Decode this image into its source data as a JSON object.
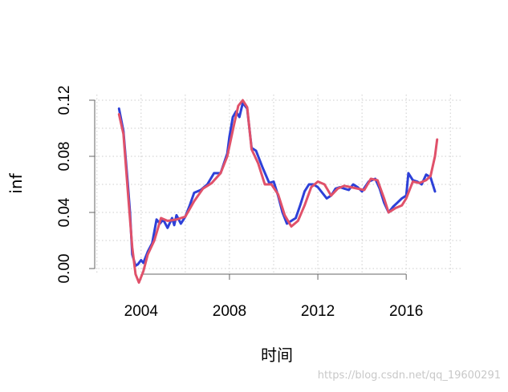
{
  "chart_data": {
    "type": "line",
    "title": "",
    "xlabel": "时间",
    "ylabel": "inf",
    "xlim": [
      2001.9,
      2018.5
    ],
    "ylim": [
      -0.004,
      0.124
    ],
    "x_ticks": [
      2004,
      2008,
      2012,
      2016
    ],
    "x_tick_labels": [
      "2004",
      "2008",
      "2012",
      "2016"
    ],
    "y_ticks": [
      0.0,
      0.04,
      0.08,
      0.12
    ],
    "y_tick_labels": [
      "0.00",
      "0.04",
      "0.08",
      "0.12"
    ],
    "grid": true,
    "series": [
      {
        "color": "#2d40d8",
        "x": [
          2003.0,
          2003.2,
          2003.4,
          2003.5,
          2003.6,
          2003.75,
          2003.85,
          2004.0,
          2004.1,
          2004.3,
          2004.5,
          2004.7,
          2004.85,
          2005.0,
          2005.2,
          2005.4,
          2005.5,
          2005.6,
          2005.8,
          2006.0,
          2006.2,
          2006.4,
          2006.7,
          2007.0,
          2007.3,
          2007.6,
          2007.9,
          2008.0,
          2008.15,
          2008.3,
          2008.45,
          2008.6,
          2008.8,
          2009.0,
          2009.2,
          2009.5,
          2009.8,
          2010.0,
          2010.2,
          2010.4,
          2010.6,
          2010.8,
          2011.0,
          2011.2,
          2011.4,
          2011.6,
          2011.8,
          2012.0,
          2012.2,
          2012.4,
          2012.6,
          2012.8,
          2013.0,
          2013.2,
          2013.4,
          2013.6,
          2013.8,
          2014.0,
          2014.3,
          2014.6,
          2014.8,
          2015.0,
          2015.2,
          2015.4,
          2015.6,
          2015.8,
          2016.0,
          2016.1,
          2016.3,
          2016.5,
          2016.7,
          2016.9,
          2017.1,
          2017.3
        ],
        "y": [
          0.114,
          0.098,
          0.06,
          0.04,
          0.01,
          0.002,
          0.003,
          0.006,
          0.004,
          0.012,
          0.018,
          0.035,
          0.032,
          0.035,
          0.029,
          0.036,
          0.031,
          0.038,
          0.032,
          0.037,
          0.045,
          0.054,
          0.056,
          0.06,
          0.068,
          0.068,
          0.082,
          0.094,
          0.108,
          0.112,
          0.108,
          0.118,
          0.114,
          0.086,
          0.084,
          0.072,
          0.061,
          0.062,
          0.052,
          0.04,
          0.032,
          0.034,
          0.036,
          0.045,
          0.055,
          0.06,
          0.06,
          0.058,
          0.054,
          0.05,
          0.052,
          0.057,
          0.058,
          0.057,
          0.056,
          0.06,
          0.058,
          0.055,
          0.062,
          0.064,
          0.057,
          0.047,
          0.04,
          0.044,
          0.047,
          0.05,
          0.052,
          0.068,
          0.063,
          0.062,
          0.06,
          0.067,
          0.065,
          0.055
        ]
      },
      {
        "color": "#e0516a",
        "x": [
          2003.0,
          2003.2,
          2003.4,
          2003.6,
          2003.75,
          2003.9,
          2004.1,
          2004.3,
          2004.6,
          2004.9,
          2005.2,
          2005.6,
          2006.0,
          2006.4,
          2006.8,
          2007.2,
          2007.6,
          2007.9,
          2008.2,
          2008.4,
          2008.6,
          2008.8,
          2009.0,
          2009.3,
          2009.6,
          2009.9,
          2010.2,
          2010.5,
          2010.8,
          2011.1,
          2011.4,
          2011.7,
          2012.0,
          2012.3,
          2012.6,
          2012.9,
          2013.2,
          2013.5,
          2013.8,
          2014.1,
          2014.4,
          2014.7,
          2015.0,
          2015.2,
          2015.5,
          2015.8,
          2016.0,
          2016.3,
          2016.6,
          2016.9,
          2017.1,
          2017.3,
          2017.4
        ],
        "y": [
          0.11,
          0.096,
          0.055,
          0.015,
          -0.004,
          -0.01,
          -0.002,
          0.01,
          0.02,
          0.036,
          0.034,
          0.035,
          0.037,
          0.048,
          0.057,
          0.061,
          0.068,
          0.08,
          0.102,
          0.116,
          0.12,
          0.115,
          0.085,
          0.075,
          0.06,
          0.06,
          0.053,
          0.038,
          0.03,
          0.034,
          0.045,
          0.058,
          0.062,
          0.06,
          0.052,
          0.057,
          0.059,
          0.058,
          0.057,
          0.056,
          0.064,
          0.063,
          0.05,
          0.04,
          0.043,
          0.045,
          0.05,
          0.062,
          0.061,
          0.063,
          0.066,
          0.08,
          0.092
        ]
      }
    ]
  },
  "watermark_text": "https://blog.csdn.net/qq_19600291"
}
